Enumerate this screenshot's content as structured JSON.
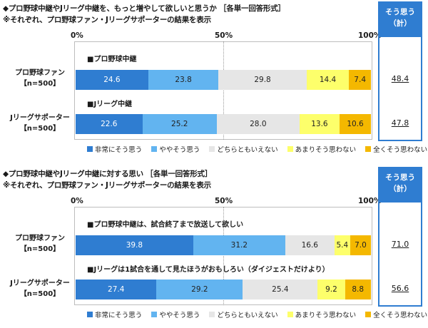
{
  "colors": [
    "#2f7dd1",
    "#62b4f0",
    "#e6e6e6",
    "#fdff6b",
    "#f4b800"
  ],
  "chart_data": [
    {
      "type": "bar",
      "orientation": "horizontal",
      "stacked": true,
      "title": "◆プロ野球中継やJリーグ中継を、もっと増やして欲しいと思うか ［各単一回答形式］",
      "subtitle": "※それぞれ、プロ野球ファン・Jリーグサポーターの結果を表示",
      "xaxis_ticks": [
        "0%",
        "50%",
        "100%"
      ],
      "xlim": [
        0,
        100
      ],
      "legend": [
        "■非常にそう思う",
        "■ややそう思う",
        "■どちらともいえない",
        "■あまりそう思わない",
        "■全くそう思わない"
      ],
      "legend_position": "bottom",
      "total_header": [
        "そう思う",
        "（計）"
      ],
      "rows": [
        {
          "label_lines": [
            "プロ野球ファン",
            "【n=500】"
          ],
          "subtitle": "■プロ野球中継",
          "values": [
            24.6,
            23.8,
            29.8,
            14.4,
            7.4
          ],
          "value_labels": [
            "24.6",
            "23.8",
            "29.8",
            "14.4",
            "7.4"
          ],
          "total": "48.4"
        },
        {
          "label_lines": [
            "Jリーグサポーター",
            "【n=500】"
          ],
          "subtitle": "■Jリーグ中継",
          "values": [
            22.6,
            25.2,
            28.0,
            13.6,
            10.6
          ],
          "value_labels": [
            "22.6",
            "25.2",
            "28.0",
            "13.6",
            "10.6"
          ],
          "total": "47.8"
        }
      ]
    },
    {
      "type": "bar",
      "orientation": "horizontal",
      "stacked": true,
      "title": "◆プロ野球中継やJリーグ中継に対する思い ［各単一回答形式］",
      "subtitle": "※それぞれ、プロ野球ファン・Jリーグサポーターの結果を表示",
      "xaxis_ticks": [
        "0%",
        "50%",
        "100%"
      ],
      "xlim": [
        0,
        100
      ],
      "legend": [
        "■非常にそう思う",
        "■ややそう思う",
        "■どちらともいえない",
        "■あまりそう思わない",
        "■全くそう思わない"
      ],
      "legend_position": "bottom",
      "total_header": [
        "そう思う",
        "（計）"
      ],
      "rows": [
        {
          "label_lines": [
            "プロ野球ファン",
            "【n=500】"
          ],
          "subtitle": "■プロ野球中継は、試合終了まで放送して欲しい",
          "values": [
            39.8,
            31.2,
            16.6,
            5.4,
            7.0
          ],
          "value_labels": [
            "39.8",
            "31.2",
            "16.6",
            "5.4",
            "7.0"
          ],
          "total": "71.0"
        },
        {
          "label_lines": [
            "Jリーグサポーター",
            "【n=500】"
          ],
          "subtitle": "■Jリーグは1試合を通して見たほうがおもしろい（ダイジェストだけより）",
          "values": [
            27.4,
            29.2,
            25.4,
            9.2,
            8.8
          ],
          "value_labels": [
            "27.4",
            "29.2",
            "25.4",
            "9.2",
            "8.8"
          ],
          "total": "56.6"
        }
      ]
    }
  ]
}
